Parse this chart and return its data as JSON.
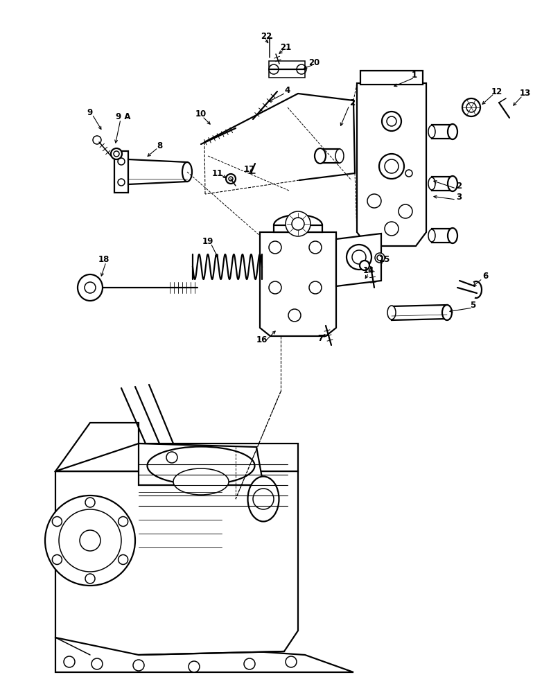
{
  "bg": "#ffffff",
  "lc": "#000000",
  "figsize": [
    8.08,
    10.0
  ],
  "dpi": 100,
  "lw": 1.1,
  "lw2": 1.6,
  "fs": 8.5
}
